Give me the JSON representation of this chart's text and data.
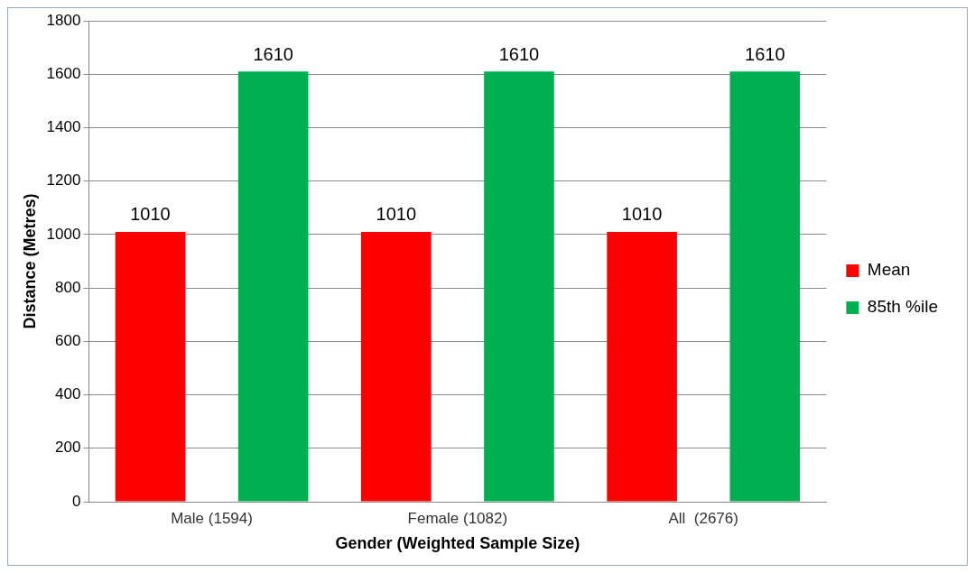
{
  "chart_data": {
    "type": "bar",
    "xlabel": "Gender (Weighted Sample Size)",
    "ylabel": "Distance (Metres)",
    "categories": [
      "Male (1594)",
      "Female (1082)",
      "All  (2676)"
    ],
    "series": [
      {
        "name": "Mean",
        "color": "#ff0000",
        "values": [
          1010,
          1010,
          1010
        ]
      },
      {
        "name": "85th %ile",
        "color": "#00b050",
        "values": [
          1610,
          1610,
          1610
        ]
      }
    ],
    "ylim": [
      0,
      1800
    ],
    "yticks": [
      0,
      200,
      400,
      600,
      800,
      1000,
      1200,
      1400,
      1600,
      1800
    ],
    "grid": "y",
    "legend": "right",
    "data_labels": true
  }
}
